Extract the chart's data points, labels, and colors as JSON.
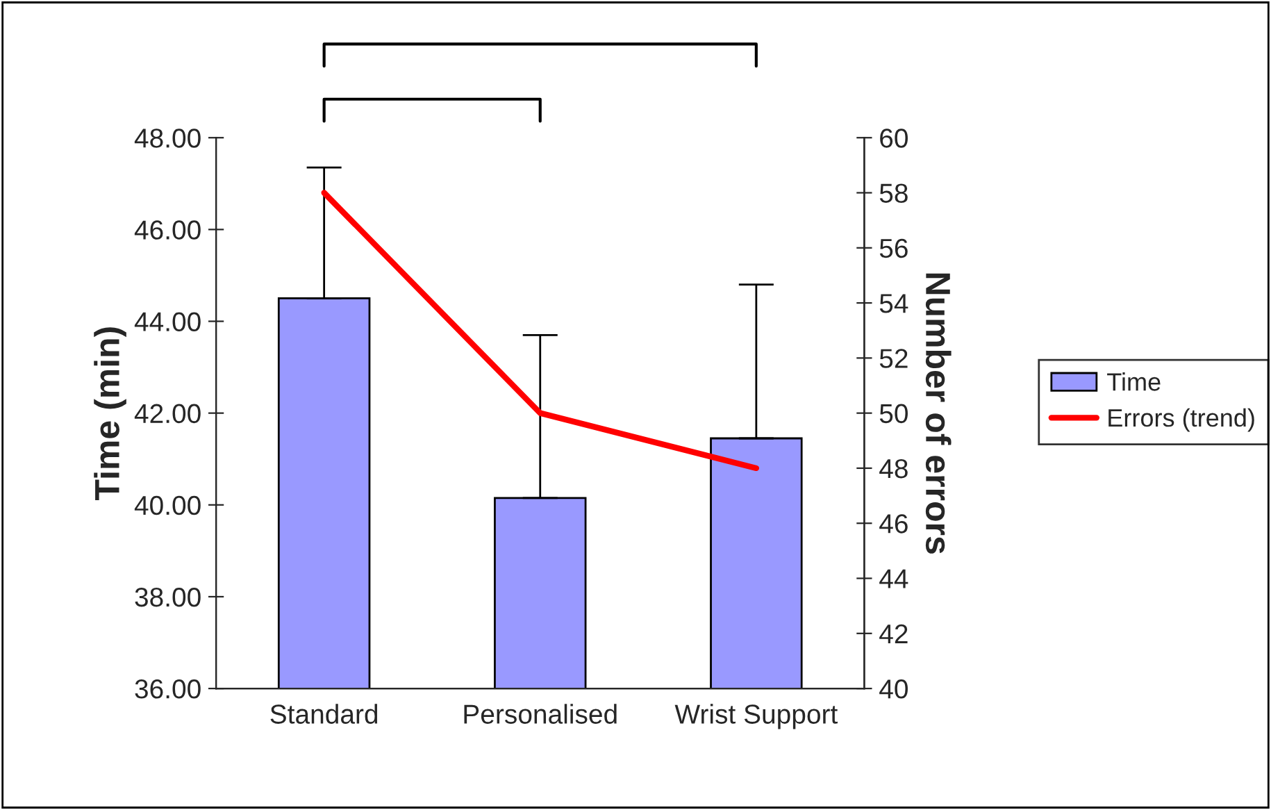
{
  "chart_data": {
    "type": "bar",
    "categories": [
      "Standard",
      "Personalised",
      "Wrist Support"
    ],
    "ylabel": "Time (min)",
    "y2label": "Number of errors",
    "series": [
      {
        "name": "Time",
        "color": "#9999ff",
        "values": [
          44.5,
          40.15,
          41.45
        ],
        "errors": [
          [
            44.5,
            47.35
          ],
          [
            40.15,
            43.7
          ],
          [
            41.45,
            44.8
          ]
        ]
      },
      {
        "name": "Errors (trend)",
        "type": "line",
        "axis": "y2",
        "color": "#ff0000",
        "values": [
          58,
          50,
          48
        ]
      }
    ],
    "ylim": [
      36,
      48
    ],
    "yticks": [
      {
        "value": 36,
        "label": "36.00"
      },
      {
        "value": 38,
        "label": "38.00"
      },
      {
        "value": 40,
        "label": "40.00"
      },
      {
        "value": 42,
        "label": "42.00"
      },
      {
        "value": 44,
        "label": "44.00"
      },
      {
        "value": 46,
        "label": "46.00"
      },
      {
        "value": 48,
        "label": "48.00"
      }
    ],
    "y2lim": [
      40,
      60
    ],
    "y2ticks": [
      40,
      42,
      44,
      46,
      48,
      50,
      52,
      54,
      56,
      58,
      60
    ],
    "legend": "right",
    "grid": false,
    "marker": "none"
  }
}
